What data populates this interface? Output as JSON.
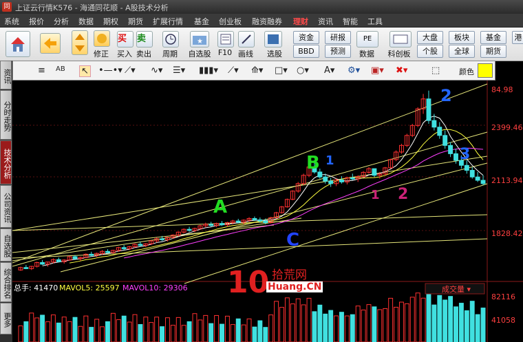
{
  "window": {
    "title": "上证云行情K576 - 海通同花顺 - A股技术分析",
    "logo": "同"
  },
  "menu": [
    "系统",
    "报价",
    "分析",
    "数据",
    "期权",
    "期货",
    "扩展行情",
    "基金",
    "创业板",
    "融资融券",
    "理财",
    "资讯",
    "智能",
    "工具"
  ],
  "menu_hot": "理财",
  "toolbar": {
    "buttons": [
      {
        "icon": "home-icon",
        "label": ""
      },
      {
        "icon": "back-arrow-icon",
        "label": ""
      },
      {
        "icon": "up-down-arrows-icon",
        "label": ""
      },
      {
        "icon": "correct-icon",
        "label": "修正"
      },
      {
        "icon": "buy-icon",
        "label": "买入",
        "glyph": "买"
      },
      {
        "icon": "sell-icon",
        "label": "卖出",
        "glyph": "卖"
      },
      {
        "icon": "clock-icon",
        "label": "周期"
      },
      {
        "icon": "folder-star-icon",
        "label": "自选股"
      },
      {
        "icon": "f10-icon",
        "label": "F10"
      },
      {
        "icon": "draw-pen-icon",
        "label": "画线"
      },
      {
        "icon": "stock-select-icon",
        "label": "选股"
      },
      {
        "icon": "pe-icon",
        "label": "数据"
      },
      {
        "icon": "sci-icon",
        "label": "科创板"
      }
    ],
    "small_buttons": [
      "资金",
      "研报",
      "BBD",
      "预测",
      "大盘",
      "板块",
      "基金",
      "个股",
      "全球",
      "期货",
      "港"
    ]
  },
  "sidebar_tabs": [
    "资讯",
    "分时走势",
    "技术分析",
    "公司资讯",
    "自选股",
    "综合排名",
    "更多"
  ],
  "sidebar_active": "技术分析",
  "drawbar": {
    "color_label": "颜色",
    "color_value": "#ffff00"
  },
  "price_axis": [
    "84.98",
    "2399.46",
    "2113.94",
    "1828.42"
  ],
  "volume": {
    "total_label": "总手: 41470",
    "ma5_label": "MAVOL5: 25597",
    "ma10_label": "MAVOL10: 29306",
    "dropdown": "成交量",
    "axis": [
      "82116",
      "41058"
    ]
  },
  "annotations": [
    {
      "text": "A",
      "color": "#22dd22"
    },
    {
      "text": "B",
      "color": "#22dd22"
    },
    {
      "text": "C",
      "color": "#2244ff"
    },
    {
      "text": "1",
      "color": "#2266ff"
    },
    {
      "text": "2",
      "color": "#2266ff"
    },
    {
      "text": "3",
      "color": "#2266ff"
    },
    {
      "text": "1",
      "color": "#cc2277"
    },
    {
      "text": "2",
      "color": "#cc2277"
    }
  ],
  "watermark": {
    "logo": "10",
    "cn": "拾荒网",
    "en": "Huang.CN"
  },
  "candles": [
    [
      1540,
      1560,
      1535,
      1555
    ],
    [
      1555,
      1570,
      1545,
      1548
    ],
    [
      1548,
      1565,
      1540,
      1562
    ],
    [
      1562,
      1590,
      1555,
      1585
    ],
    [
      1585,
      1600,
      1570,
      1575
    ],
    [
      1575,
      1590,
      1560,
      1588
    ],
    [
      1588,
      1610,
      1580,
      1602
    ],
    [
      1602,
      1615,
      1585,
      1590
    ],
    [
      1590,
      1605,
      1578,
      1600
    ],
    [
      1600,
      1625,
      1595,
      1620
    ],
    [
      1620,
      1630,
      1600,
      1608
    ],
    [
      1608,
      1620,
      1595,
      1615
    ],
    [
      1615,
      1640,
      1610,
      1635
    ],
    [
      1635,
      1650,
      1620,
      1628
    ],
    [
      1628,
      1645,
      1618,
      1640
    ],
    [
      1640,
      1660,
      1630,
      1652
    ],
    [
      1652,
      1665,
      1640,
      1645
    ],
    [
      1645,
      1662,
      1638,
      1658
    ],
    [
      1658,
      1680,
      1650,
      1675
    ],
    [
      1675,
      1690,
      1660,
      1668
    ],
    [
      1668,
      1685,
      1660,
      1680
    ],
    [
      1680,
      1700,
      1672,
      1695
    ],
    [
      1695,
      1710,
      1680,
      1688
    ],
    [
      1688,
      1702,
      1678,
      1698
    ],
    [
      1698,
      1720,
      1690,
      1715
    ],
    [
      1715,
      1735,
      1705,
      1728
    ],
    [
      1728,
      1745,
      1715,
      1722
    ],
    [
      1722,
      1740,
      1712,
      1736
    ],
    [
      1736,
      1755,
      1728,
      1750
    ],
    [
      1750,
      1772,
      1742,
      1768
    ],
    [
      1768,
      1790,
      1760,
      1785
    ],
    [
      1785,
      1800,
      1770,
      1778
    ],
    [
      1778,
      1795,
      1768,
      1790
    ],
    [
      1790,
      1812,
      1782,
      1806
    ],
    [
      1806,
      1825,
      1795,
      1815
    ],
    [
      1815,
      1830,
      1800,
      1808
    ],
    [
      1808,
      1825,
      1798,
      1820
    ],
    [
      1820,
      1835,
      1805,
      1812
    ],
    [
      1812,
      1830,
      1800,
      1825
    ],
    [
      1825,
      1842,
      1815,
      1835
    ],
    [
      1835,
      1848,
      1820,
      1828
    ],
    [
      1828,
      1845,
      1815,
      1840
    ],
    [
      1840,
      1858,
      1830,
      1850
    ],
    [
      1850,
      1862,
      1835,
      1842
    ],
    [
      1842,
      1856,
      1825,
      1835
    ],
    [
      1835,
      1850,
      1815,
      1825
    ],
    [
      1825,
      1860,
      1820,
      1855
    ],
    [
      1855,
      1890,
      1850,
      1885
    ],
    [
      1885,
      1925,
      1880,
      1920
    ],
    [
      1920,
      1970,
      1915,
      1965
    ],
    [
      1965,
      2020,
      1960,
      2015
    ],
    [
      2015,
      2070,
      2005,
      2060
    ],
    [
      2060,
      2120,
      2050,
      2110
    ],
    [
      2110,
      2170,
      2100,
      2160
    ],
    [
      2160,
      2190,
      2120,
      2130
    ],
    [
      2130,
      2150,
      2090,
      2100
    ],
    [
      2100,
      2120,
      2060,
      2075
    ],
    [
      2075,
      2095,
      2040,
      2060
    ],
    [
      2060,
      2090,
      2045,
      2082
    ],
    [
      2082,
      2105,
      2060,
      2070
    ],
    [
      2070,
      2100,
      2055,
      2095
    ],
    [
      2095,
      2120,
      2080,
      2088
    ],
    [
      2088,
      2110,
      2070,
      2102
    ],
    [
      2102,
      2135,
      2095,
      2128
    ],
    [
      2128,
      2160,
      2120,
      2150
    ],
    [
      2150,
      2145,
      2100,
      2110
    ],
    [
      2110,
      2130,
      2090,
      2118
    ],
    [
      2118,
      2160,
      2110,
      2155
    ],
    [
      2155,
      2210,
      2150,
      2205
    ],
    [
      2205,
      2260,
      2195,
      2250
    ],
    [
      2250,
      2300,
      2240,
      2290
    ],
    [
      2290,
      2360,
      2280,
      2350
    ],
    [
      2350,
      2420,
      2340,
      2410
    ],
    [
      2410,
      2520,
      2400,
      2510
    ],
    [
      2510,
      2600,
      2480,
      2570
    ],
    [
      2570,
      2620,
      2420,
      2440
    ],
    [
      2440,
      2480,
      2380,
      2400
    ],
    [
      2400,
      2430,
      2330,
      2350
    ],
    [
      2350,
      2380,
      2270,
      2290
    ],
    [
      2290,
      2310,
      2220,
      2240
    ],
    [
      2240,
      2270,
      2180,
      2200
    ],
    [
      2200,
      2230,
      2150,
      2170
    ],
    [
      2170,
      2200,
      2120,
      2140
    ],
    [
      2140,
      2160,
      2090,
      2100
    ],
    [
      2100,
      2130,
      2070,
      2080
    ],
    [
      2080,
      2110,
      2050,
      2060
    ]
  ]
}
